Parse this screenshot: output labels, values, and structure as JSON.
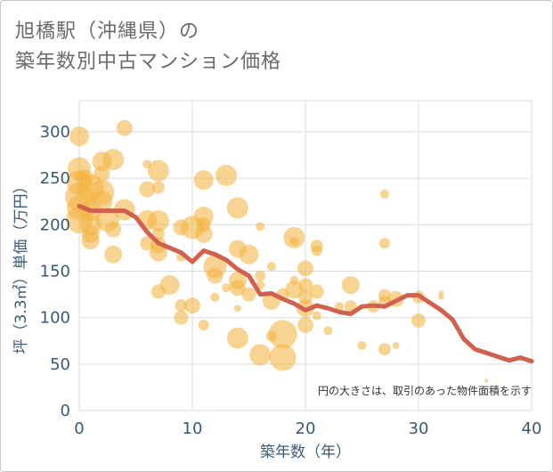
{
  "title_line1": "旭橋駅（沖縄県）の",
  "title_line2": "築年数別中古マンション価格",
  "chart_data": {
    "type": "scatter",
    "xlabel": "築年数（年）",
    "ylabel": "坪（3.3㎡）単価（万円）",
    "xlim": [
      0,
      40
    ],
    "ylim": [
      0,
      320
    ],
    "xticks": [
      "0",
      "10",
      "20",
      "30",
      "40"
    ],
    "yticks": [
      "0",
      "50",
      "100",
      "150",
      "200",
      "250",
      "300"
    ],
    "grid": true,
    "note": "円の大きさは、取引のあった物件面積を示す",
    "colors": {
      "bubble": "#f2b13a",
      "line": "#d2604e",
      "grid": "#d7dde3"
    },
    "bubbles": [
      {
        "x": 0,
        "y": 295,
        "s": 11
      },
      {
        "x": 0,
        "y": 260,
        "s": 13
      },
      {
        "x": 0,
        "y": 245,
        "s": 14
      },
      {
        "x": 0,
        "y": 230,
        "s": 16
      },
      {
        "x": 0,
        "y": 218,
        "s": 14
      },
      {
        "x": 0,
        "y": 205,
        "s": 15
      },
      {
        "x": 0.5,
        "y": 250,
        "s": 10
      },
      {
        "x": 1,
        "y": 240,
        "s": 15
      },
      {
        "x": 1,
        "y": 215,
        "s": 12
      },
      {
        "x": 1,
        "y": 200,
        "s": 12
      },
      {
        "x": 1,
        "y": 190,
        "s": 10
      },
      {
        "x": 1,
        "y": 183,
        "s": 10
      },
      {
        "x": 2,
        "y": 268,
        "s": 11
      },
      {
        "x": 2,
        "y": 255,
        "s": 9
      },
      {
        "x": 2,
        "y": 235,
        "s": 14
      },
      {
        "x": 2,
        "y": 225,
        "s": 12
      },
      {
        "x": 2.5,
        "y": 205,
        "s": 13
      },
      {
        "x": 3,
        "y": 270,
        "s": 12
      },
      {
        "x": 3,
        "y": 195,
        "s": 9
      },
      {
        "x": 3,
        "y": 168,
        "s": 10
      },
      {
        "x": 4,
        "y": 304,
        "s": 9
      },
      {
        "x": 4,
        "y": 216,
        "s": 12
      },
      {
        "x": 6,
        "y": 265,
        "s": 5
      },
      {
        "x": 6,
        "y": 238,
        "s": 9
      },
      {
        "x": 6,
        "y": 205,
        "s": 11
      },
      {
        "x": 6,
        "y": 180,
        "s": 8
      },
      {
        "x": 7,
        "y": 258,
        "s": 12
      },
      {
        "x": 7,
        "y": 240,
        "s": 7
      },
      {
        "x": 7,
        "y": 204,
        "s": 12
      },
      {
        "x": 7,
        "y": 190,
        "s": 7
      },
      {
        "x": 7,
        "y": 178,
        "s": 9
      },
      {
        "x": 7,
        "y": 170,
        "s": 10
      },
      {
        "x": 7,
        "y": 128,
        "s": 8
      },
      {
        "x": 8,
        "y": 135,
        "s": 11
      },
      {
        "x": 9,
        "y": 197,
        "s": 9
      },
      {
        "x": 9,
        "y": 165,
        "s": 5
      },
      {
        "x": 9,
        "y": 113,
        "s": 7
      },
      {
        "x": 9,
        "y": 100,
        "s": 8
      },
      {
        "x": 10,
        "y": 197,
        "s": 13
      },
      {
        "x": 10,
        "y": 113,
        "s": 9
      },
      {
        "x": 11,
        "y": 248,
        "s": 11
      },
      {
        "x": 11,
        "y": 209,
        "s": 11
      },
      {
        "x": 11,
        "y": 200,
        "s": 8
      },
      {
        "x": 11,
        "y": 190,
        "s": 10
      },
      {
        "x": 11,
        "y": 92,
        "s": 6
      },
      {
        "x": 12,
        "y": 155,
        "s": 13
      },
      {
        "x": 12,
        "y": 145,
        "s": 9
      },
      {
        "x": 12,
        "y": 122,
        "s": 5
      },
      {
        "x": 13,
        "y": 253,
        "s": 12
      },
      {
        "x": 13,
        "y": 132,
        "s": 5
      },
      {
        "x": 14,
        "y": 218,
        "s": 12
      },
      {
        "x": 14,
        "y": 174,
        "s": 10
      },
      {
        "x": 14,
        "y": 140,
        "s": 10
      },
      {
        "x": 14,
        "y": 132,
        "s": 9
      },
      {
        "x": 14,
        "y": 110,
        "s": 4
      },
      {
        "x": 14,
        "y": 78,
        "s": 12
      },
      {
        "x": 15,
        "y": 168,
        "s": 11
      },
      {
        "x": 15,
        "y": 125,
        "s": 8
      },
      {
        "x": 16,
        "y": 198,
        "s": 5
      },
      {
        "x": 16,
        "y": 145,
        "s": 6
      },
      {
        "x": 16,
        "y": 135,
        "s": 5
      },
      {
        "x": 16,
        "y": 60,
        "s": 12
      },
      {
        "x": 17,
        "y": 155,
        "s": 5
      },
      {
        "x": 17,
        "y": 118,
        "s": 10
      },
      {
        "x": 17,
        "y": 80,
        "s": 6
      },
      {
        "x": 18,
        "y": 125,
        "s": 7
      },
      {
        "x": 18,
        "y": 82,
        "s": 16
      },
      {
        "x": 18,
        "y": 57,
        "s": 15
      },
      {
        "x": 19,
        "y": 186,
        "s": 12
      },
      {
        "x": 19,
        "y": 140,
        "s": 5
      },
      {
        "x": 19,
        "y": 130,
        "s": 10
      },
      {
        "x": 19,
        "y": 182,
        "s": 5
      },
      {
        "x": 20,
        "y": 153,
        "s": 9
      },
      {
        "x": 20,
        "y": 135,
        "s": 8
      },
      {
        "x": 20,
        "y": 122,
        "s": 8
      },
      {
        "x": 20,
        "y": 110,
        "s": 10
      },
      {
        "x": 20,
        "y": 92,
        "s": 9
      },
      {
        "x": 21,
        "y": 177,
        "s": 7
      },
      {
        "x": 21,
        "y": 172,
        "s": 6
      },
      {
        "x": 21,
        "y": 128,
        "s": 8
      },
      {
        "x": 21,
        "y": 102,
        "s": 5
      },
      {
        "x": 22,
        "y": 86,
        "s": 5
      },
      {
        "x": 23,
        "y": 112,
        "s": 5
      },
      {
        "x": 24,
        "y": 135,
        "s": 10
      },
      {
        "x": 24,
        "y": 112,
        "s": 7
      },
      {
        "x": 25,
        "y": 70,
        "s": 5
      },
      {
        "x": 26,
        "y": 112,
        "s": 7
      },
      {
        "x": 27,
        "y": 233,
        "s": 5
      },
      {
        "x": 27,
        "y": 180,
        "s": 6
      },
      {
        "x": 27,
        "y": 124,
        "s": 7
      },
      {
        "x": 27,
        "y": 117,
        "s": 7
      },
      {
        "x": 27,
        "y": 66,
        "s": 7
      },
      {
        "x": 28,
        "y": 120,
        "s": 9
      },
      {
        "x": 28,
        "y": 70,
        "s": 4
      },
      {
        "x": 30,
        "y": 122,
        "s": 7
      },
      {
        "x": 30,
        "y": 97,
        "s": 8
      },
      {
        "x": 32,
        "y": 126,
        "s": 3
      },
      {
        "x": 32,
        "y": 122,
        "s": 3
      },
      {
        "x": 36,
        "y": 32,
        "s": 2
      }
    ],
    "trend": {
      "x": [
        0,
        1,
        2,
        3,
        4,
        5,
        6,
        7,
        8,
        9,
        10,
        11,
        12,
        13,
        14,
        15,
        16,
        17,
        18,
        19,
        20,
        21,
        22,
        23,
        24,
        25,
        26,
        27,
        28,
        29,
        30,
        31,
        32,
        33,
        34,
        35,
        36,
        37,
        38,
        39,
        40
      ],
      "y": [
        220,
        215,
        215,
        215,
        215,
        208,
        192,
        180,
        175,
        170,
        160,
        172,
        168,
        162,
        152,
        145,
        125,
        126,
        120,
        115,
        108,
        113,
        110,
        106,
        104,
        112,
        113,
        112,
        118,
        124,
        124,
        116,
        108,
        98,
        77,
        66,
        62,
        58,
        54,
        57,
        53
      ]
    }
  }
}
